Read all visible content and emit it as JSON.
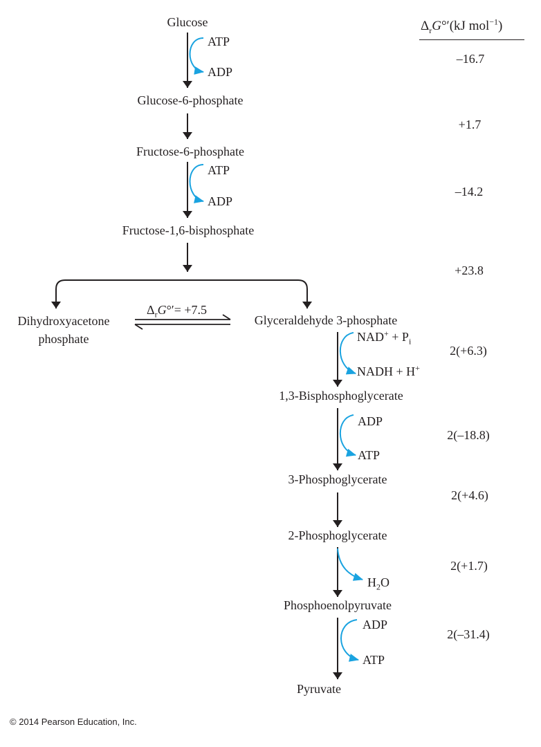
{
  "diagram": {
    "colors": {
      "arrow": "#231f20",
      "cofactor_arrow": "#1aa3e0",
      "text": "#231f20"
    },
    "metabolites": {
      "glucose": "Glucose",
      "glucose_6_phosphate": "Glucose-6-phosphate",
      "fructose_6_phosphate": "Fructose-6-phosphate",
      "fructose_1_6_bisphosphate": "Fructose-1,6-bisphosphate",
      "dhap_line1": "Dihydroxyacetone",
      "dhap_line2": "phosphate",
      "g3p": "Glyceraldehyde 3-phosphate",
      "bpg_1_3": "1,3-Bisphosphoglycerate",
      "pg_3": "3-Phosphoglycerate",
      "pg_2": "2-Phosphoglycerate",
      "pep": "Phosphoenolpyruvate",
      "pyruvate": "Pyruvate"
    },
    "cofactors": {
      "s1_in": "ATP",
      "s1_out": "ADP",
      "s3_in": "ATP",
      "s3_out": "ADP",
      "s6_in_nad": "NAD",
      "s6_in_nad_sup": "+",
      "s6_in_plus_p": " + P",
      "s6_in_p_sub": "i",
      "s6_out_nadh": "NADH + H",
      "s6_out_sup": "+",
      "s7_in": "ADP",
      "s7_out": "ATP",
      "s9_out_h": "H",
      "s9_out_sub": "2",
      "s9_out_o": "O",
      "s10_in": "ADP",
      "s10_out": "ATP"
    },
    "isomerase_label": {
      "delta": "Δ",
      "sub": "r",
      "g": "G",
      "deg": "°′",
      "eq_value": "= +7.5"
    },
    "energy_header": {
      "delta": "Δ",
      "sub": "r",
      "g": "G",
      "deg": "°′",
      "units_open": "(kJ mol",
      "units_sup": "−1",
      "units_close": ")"
    },
    "energies": [
      "–16.7",
      "+1.7",
      "–14.2",
      "+23.8",
      "2(+6.3)",
      "2(–18.8)",
      "2(+4.6)",
      "2(+1.7)",
      "2(–31.4)"
    ]
  },
  "copyright": "© 2014 Pearson Education, Inc."
}
